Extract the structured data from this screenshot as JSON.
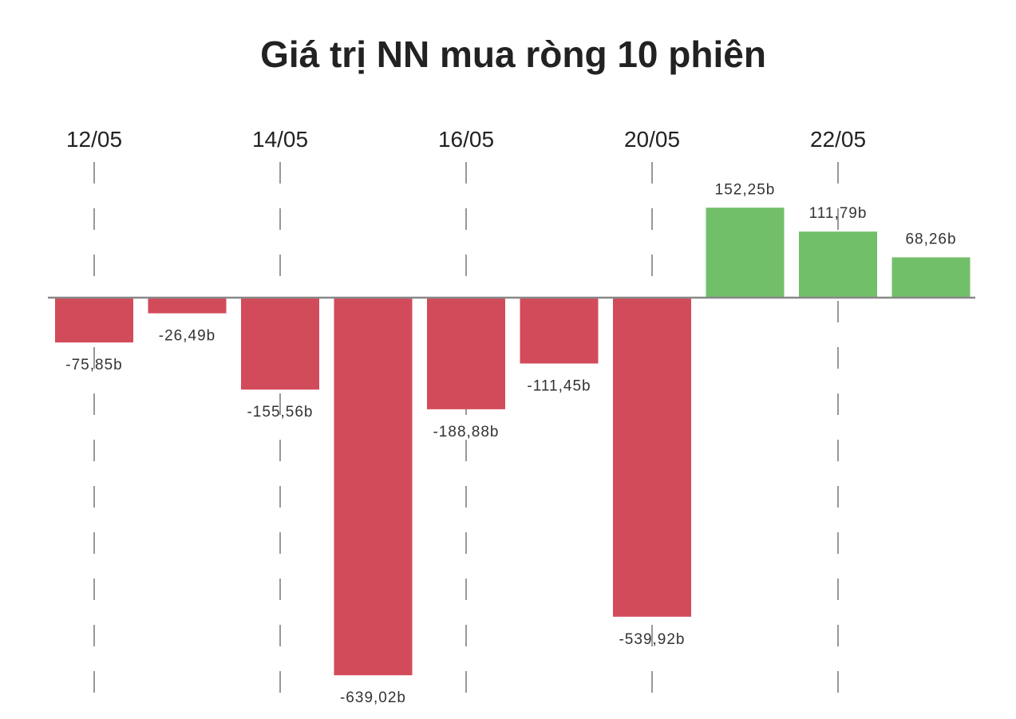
{
  "chart_data": {
    "type": "bar",
    "title": "Giá trị NN mua ròng 10 phiên",
    "xlabel": "",
    "ylabel": "",
    "categories": [
      "12/05",
      "",
      "14/05",
      "",
      "16/05",
      "",
      "20/05",
      "",
      "22/05",
      ""
    ],
    "values": [
      -75.85,
      -26.49,
      -155.56,
      -639.02,
      -188.88,
      -111.45,
      -539.92,
      152.25,
      111.79,
      68.26
    ],
    "data_labels": [
      "-75,85b",
      "-26,49b",
      "-155,56b",
      "-639,02b",
      "-188,88b",
      "-111,45b",
      "-539,92b",
      "152,25b",
      "111,79b",
      "68,26b"
    ],
    "x_axis_position": "top",
    "grid": "vertical dashed at labeled ticks",
    "legend": "none",
    "colors": {
      "negative": "#d24b5a",
      "positive": "#72bf6a",
      "baseline": "#888888",
      "grid": "#777777"
    }
  }
}
